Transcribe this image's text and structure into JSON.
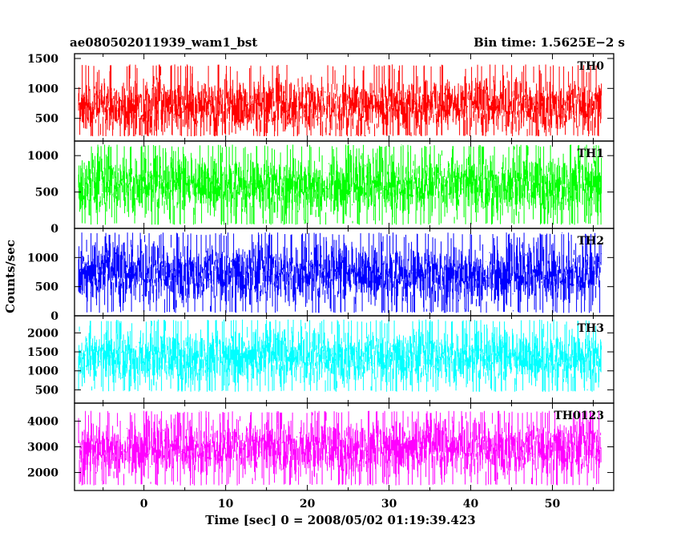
{
  "chart_data": {
    "type": "line",
    "title": "ae080502011939_wam1_bst",
    "subtitle": "Bin time: 1.5625E−2 s",
    "xlabel": "Time [sec] 0 = 2008/05/02 01:19:39.423",
    "ylabel": "Counts/sec",
    "xlim": [
      -8.5,
      57.5
    ],
    "x_ticks": [
      "0",
      "10",
      "20",
      "30",
      "40",
      "50"
    ],
    "x_tick_values": [
      0,
      10,
      20,
      30,
      40,
      50
    ],
    "data_x_range": [
      -8,
      56
    ],
    "grid": false,
    "panels": [
      {
        "name": "TH0",
        "color": "#ff0000",
        "ylim": [
          120,
          1580
        ],
        "y_ticks": [
          "500",
          "1000",
          "1500"
        ],
        "y_tick_values": [
          500,
          1000,
          1500
        ],
        "mean": 700,
        "min": 200,
        "max": 1400
      },
      {
        "name": "TH1",
        "color": "#00ff00",
        "ylim": [
          0,
          1200
        ],
        "y_ticks": [
          "0",
          "500",
          "1000"
        ],
        "y_tick_values": [
          0,
          500,
          1000
        ],
        "mean": 600,
        "min": 50,
        "max": 1150
      },
      {
        "name": "TH2",
        "color": "#0000ff",
        "ylim": [
          0,
          1500
        ],
        "y_ticks": [
          "0",
          "500",
          "1000"
        ],
        "y_tick_values": [
          0,
          500,
          1000
        ],
        "mean": 720,
        "min": 50,
        "max": 1430
      },
      {
        "name": "TH3",
        "color": "#00ffff",
        "ylim": [
          150,
          2450
        ],
        "y_ticks": [
          "500",
          "1000",
          "1500",
          "2000"
        ],
        "y_tick_values": [
          500,
          1000,
          1500,
          2000
        ],
        "mean": 1350,
        "min": 450,
        "max": 2350
      },
      {
        "name": "TH0123",
        "color": "#ff00ff",
        "ylim": [
          1300,
          4700
        ],
        "y_ticks": [
          "2000",
          "3000",
          "4000"
        ],
        "y_tick_values": [
          2000,
          3000,
          4000
        ],
        "mean": 2950,
        "min": 1500,
        "max": 4400
      }
    ]
  }
}
